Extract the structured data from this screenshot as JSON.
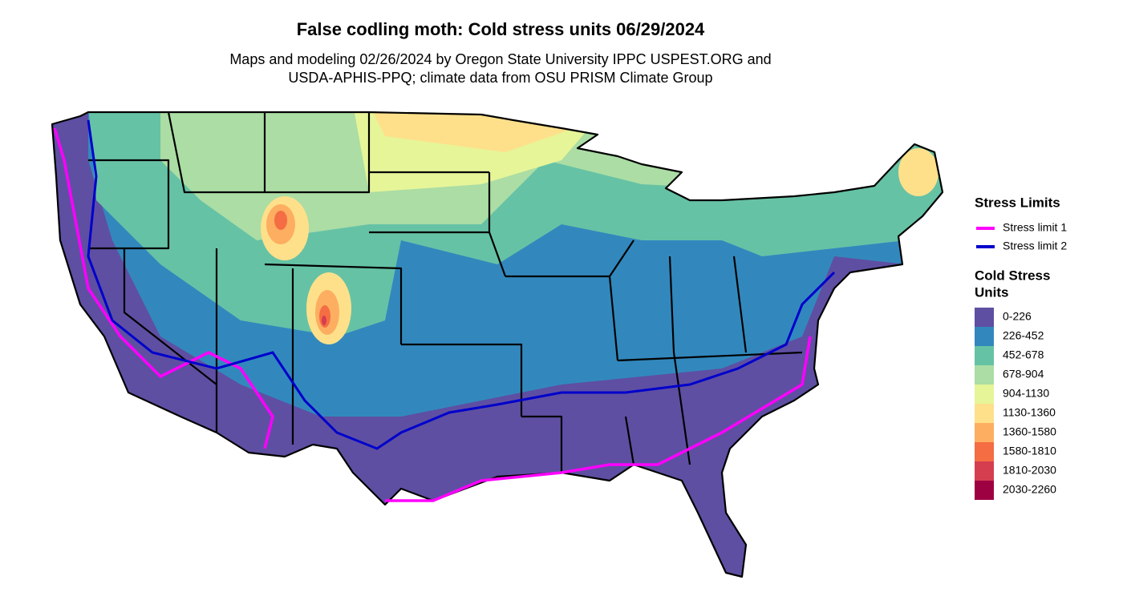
{
  "title": "False codling moth: Cold stress units 06/29/2024",
  "subtitle": [
    "Maps and modeling 02/26/2024 by Oregon State University IPPC USPEST.ORG and",
    "USDA-APHIS-PPQ; climate data from OSU PRISM Climate Group"
  ],
  "legend": {
    "stress_limits": {
      "title": "Stress Limits",
      "items": [
        {
          "label": "Stress limit 1",
          "color": "#ff00ff"
        },
        {
          "label": "Stress limit 2",
          "color": "#0000cc"
        }
      ]
    },
    "cold_stress_units": {
      "title": [
        "Cold Stress",
        "Units"
      ],
      "items": [
        {
          "label": "0-226",
          "color": "#5e4fa2"
        },
        {
          "label": "226-452",
          "color": "#3288bd"
        },
        {
          "label": "452-678",
          "color": "#66c2a5"
        },
        {
          "label": "678-904",
          "color": "#abdda4"
        },
        {
          "label": "904-1130",
          "color": "#e6f598"
        },
        {
          "label": "1130-1360",
          "color": "#fee08b"
        },
        {
          "label": "1360-1580",
          "color": "#fdae61"
        },
        {
          "label": "1580-1810",
          "color": "#f46d43"
        },
        {
          "label": "1810-2030",
          "color": "#d53e4f"
        },
        {
          "label": "2030-2260",
          "color": "#9e0142"
        }
      ]
    }
  }
}
